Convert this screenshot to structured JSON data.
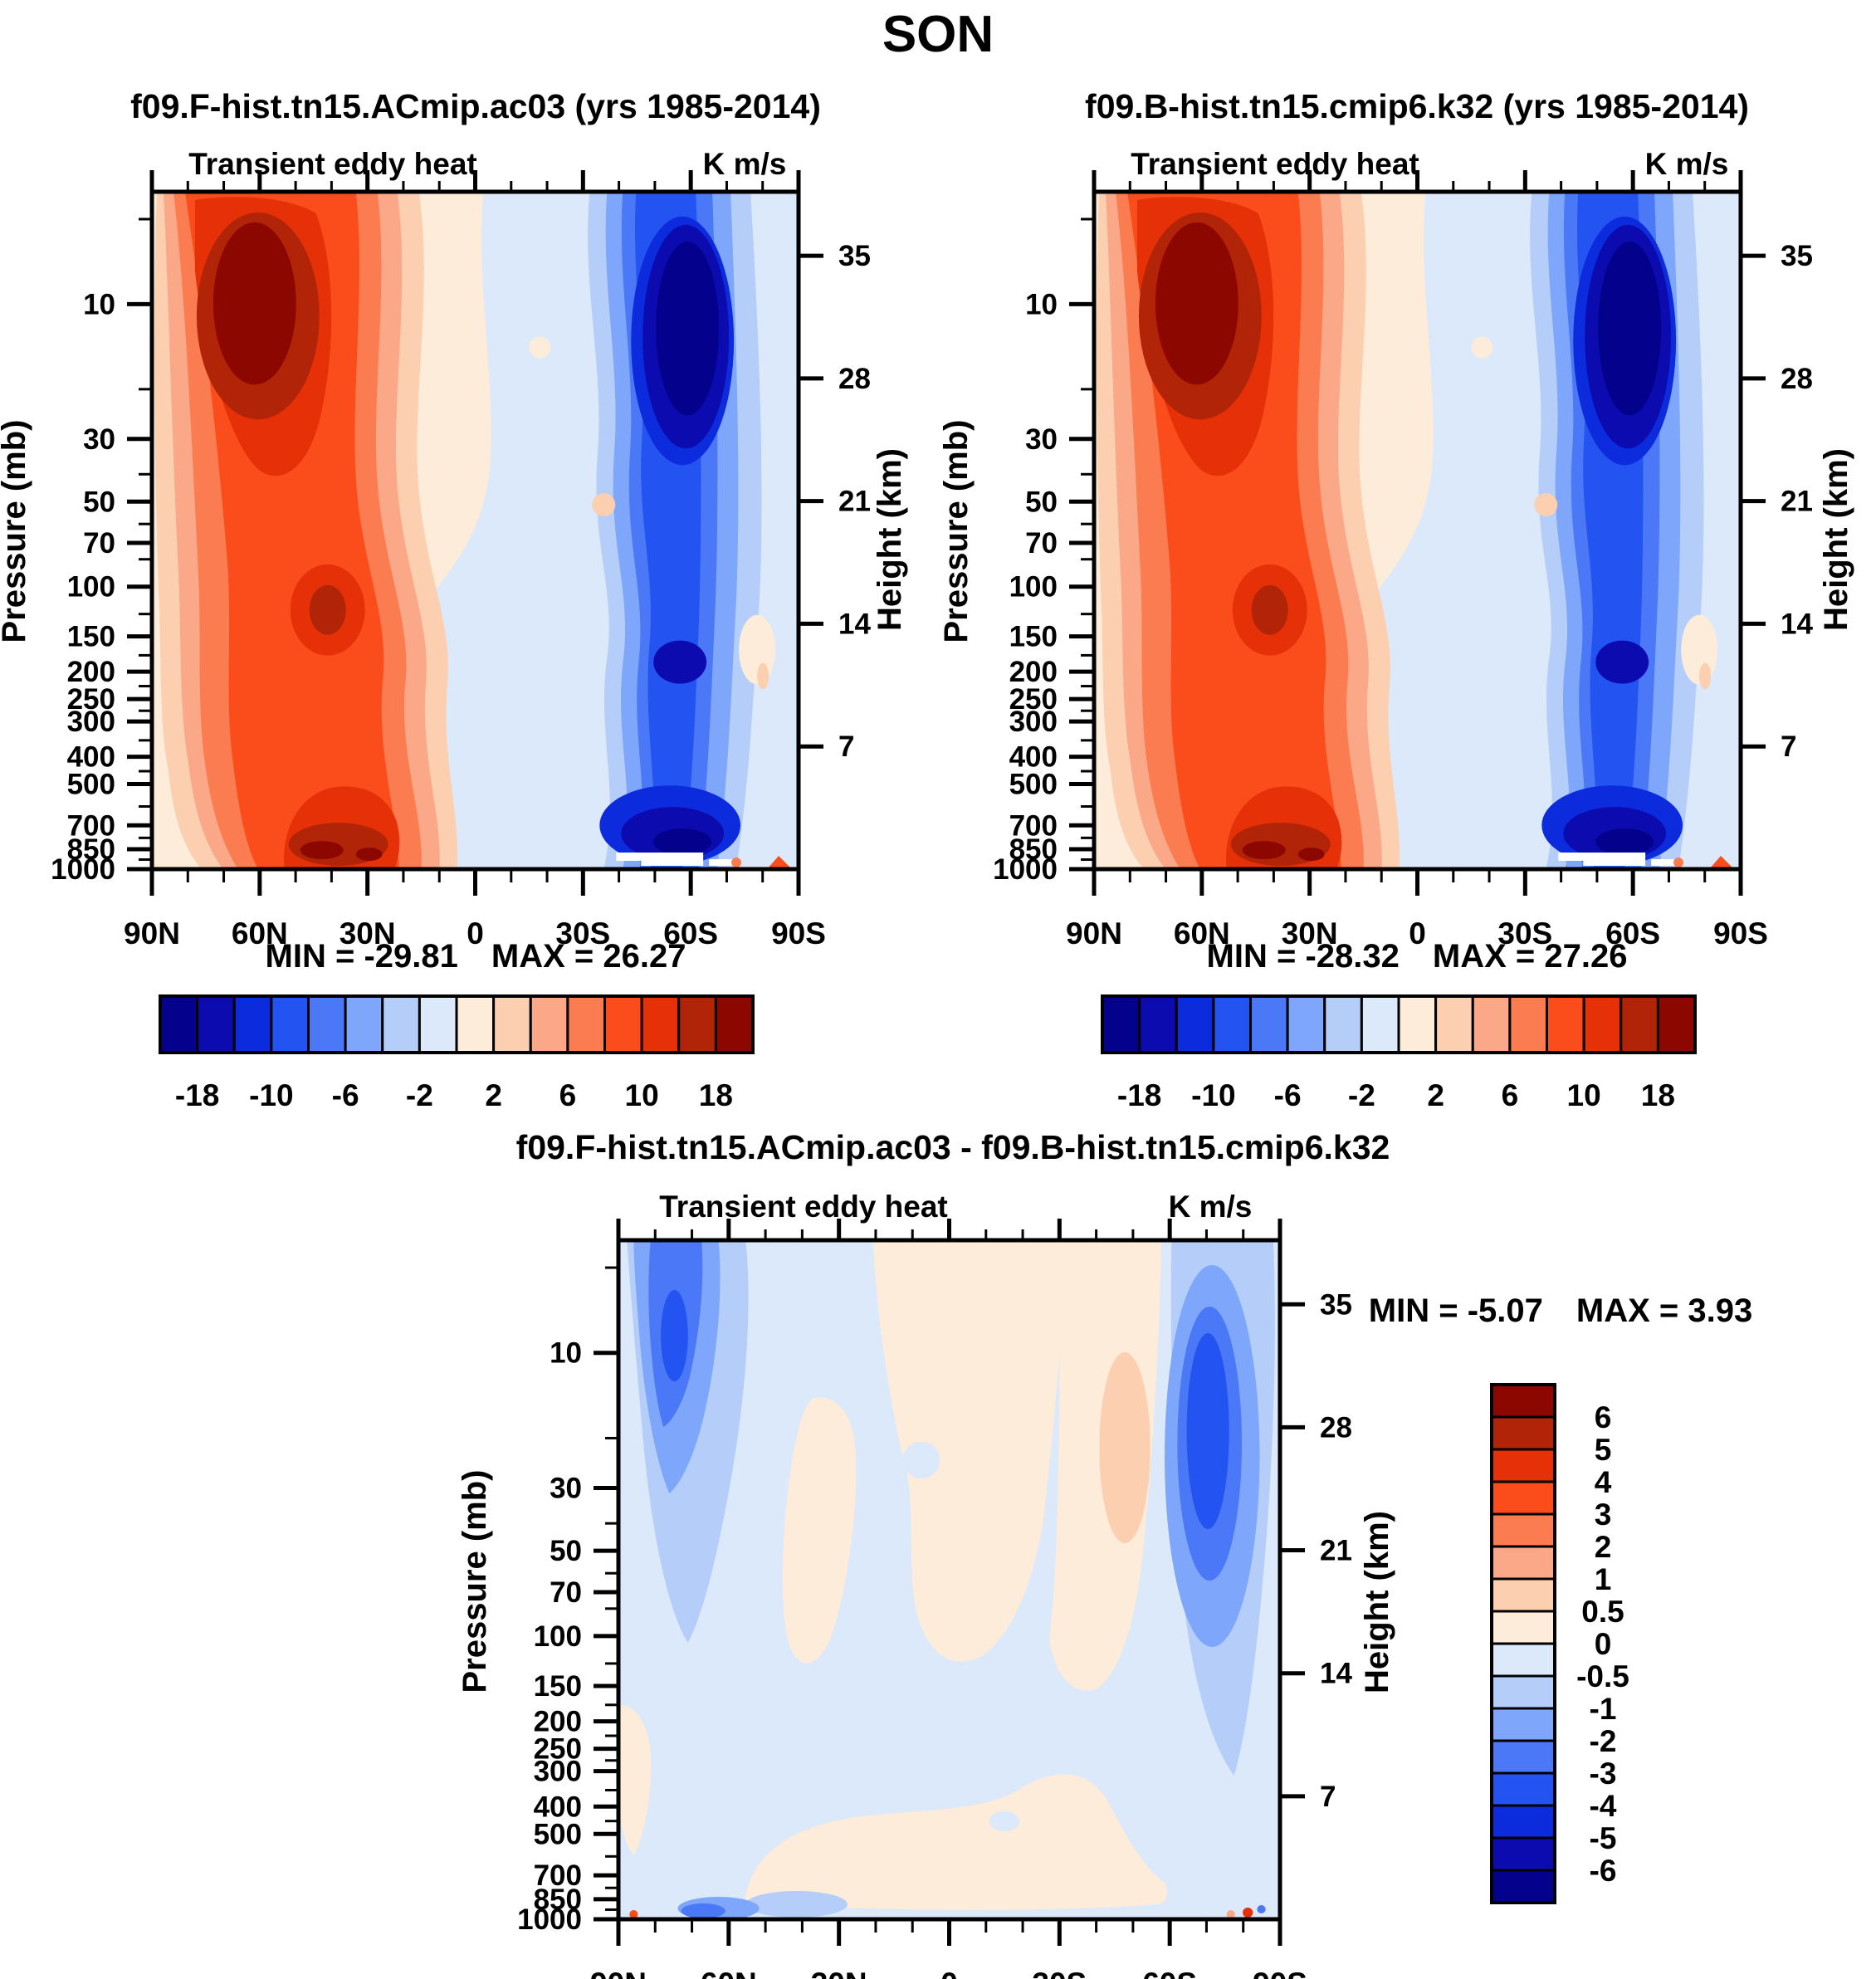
{
  "figure_title": "SON",
  "panels": {
    "top_left": {
      "title": "f09.F-hist.tn15.ACmip.ac03 (yrs 1985-2014)",
      "field_label": "Transient eddy heat",
      "units_label": "K m/s",
      "stats": "MIN = -29.81 MAX =  26.27"
    },
    "top_right": {
      "title": "f09.B-hist.tn15.cmip6.k32 (yrs 1985-2014)",
      "field_label": "Transient eddy heat",
      "units_label": "K m/s",
      "stats": "MIN = -28.32 MAX =  27.26"
    },
    "diff": {
      "title": "f09.F-hist.tn15.ACmip.ac03 - f09.B-hist.tn15.cmip6.k32",
      "field_label": "Transient eddy heat",
      "units_label": "K m/s",
      "stats": "MIN =  -5.07 MAX =   3.93"
    }
  },
  "axes": {
    "latitude": {
      "tick_labels": [
        "90N",
        "60N",
        "30N",
        "0",
        "30S",
        "60S",
        "90S"
      ]
    },
    "pressure": {
      "label": "Pressure (mb)",
      "tick_labels": [
        10,
        30,
        50,
        70,
        100,
        150,
        200,
        250,
        300,
        400,
        500,
        700,
        850,
        1000
      ],
      "minor_ticks": [
        5,
        20,
        40,
        60,
        80,
        125,
        175,
        225,
        275,
        350,
        450,
        600,
        775,
        925
      ],
      "top_pressure_mb": 4
    },
    "height": {
      "label": "Height (km)",
      "tick_labels": [
        35,
        28,
        21,
        14,
        7
      ]
    }
  },
  "palette": {
    "colors": [
      "#04028C",
      "#0B0BAF",
      "#0C2BDD",
      "#2353F0",
      "#4A78F7",
      "#7EA6FB",
      "#B5CEF9",
      "#DBE9FA",
      "#FCECD9",
      "#FCCFB0",
      "#FBA888",
      "#FA7C50",
      "#FB4C1C",
      "#E63008",
      "#B22407",
      "#8C0700"
    ]
  },
  "colorbar_top": {
    "labels": [
      "-18",
      "-10",
      "-6",
      "-2",
      "2",
      "6",
      "10",
      "18"
    ],
    "label_boundary_index": [
      1,
      3,
      5,
      7,
      9,
      11,
      13,
      15
    ]
  },
  "colorbar_diff": {
    "labels": [
      "6",
      "5",
      "4",
      "3",
      "2",
      "1",
      "0.5",
      "0",
      "-0.5",
      "-1",
      "-2",
      "-3",
      "-4",
      "-5",
      "-6"
    ]
  },
  "chart_data": [
    {
      "type": "filled_contour",
      "panel": "top_left",
      "title": "f09.F-hist.tn15.ACmip.ac03 (yrs 1985-2014)",
      "variable": "Transient eddy heat",
      "units": "K m/s",
      "x_axis": {
        "label": "latitude",
        "range": [
          "90N",
          "90S"
        ],
        "ticks": [
          "90N",
          "60N",
          "30N",
          "0",
          "30S",
          "60S",
          "90S"
        ]
      },
      "y_axis": {
        "label": "Pressure (mb)",
        "scale": "log",
        "range_mb": [
          1000,
          4
        ],
        "ticks": [
          10,
          30,
          50,
          70,
          100,
          150,
          200,
          250,
          300,
          400,
          500,
          700,
          850,
          1000
        ]
      },
      "y2_axis": {
        "label": "Height (km)",
        "ticks": [
          35,
          28,
          21,
          14,
          7
        ]
      },
      "contour_levels": [
        -18,
        -14,
        -10,
        -8,
        -6,
        -4,
        -2,
        0,
        2,
        4,
        6,
        8,
        10,
        14,
        18
      ],
      "min": -29.81,
      "max": 26.27,
      "features": [
        {
          "desc": "strong positive (red) cell >18 centered near 60N at ~10 mb"
        },
        {
          "desc": "secondary positive maxima near 55N at 150-200 mb and near-surface 50-60N (700-1000 mb)"
        },
        {
          "desc": "strong negative (blue) cell <-18 centered near 55-60S at 10-30 mb"
        },
        {
          "desc": "secondary negative minimum near 60S at 700-1000 mb (absolute min -29.81)"
        },
        {
          "desc": "near-zero values in tropics and at both poles"
        }
      ]
    },
    {
      "type": "filled_contour",
      "panel": "top_right",
      "title": "f09.B-hist.tn15.cmip6.k32 (yrs 1985-2014)",
      "variable": "Transient eddy heat",
      "units": "K m/s",
      "x_axis": {
        "label": "latitude",
        "range": [
          "90N",
          "90S"
        ],
        "ticks": [
          "90N",
          "60N",
          "30N",
          "0",
          "30S",
          "60S",
          "90S"
        ]
      },
      "y_axis": {
        "label": "Pressure (mb)",
        "scale": "log",
        "range_mb": [
          1000,
          4
        ],
        "ticks": [
          10,
          30,
          50,
          70,
          100,
          150,
          200,
          250,
          300,
          400,
          500,
          700,
          850,
          1000
        ]
      },
      "y2_axis": {
        "label": "Height (km)",
        "ticks": [
          35,
          28,
          21,
          14,
          7
        ]
      },
      "contour_levels": [
        -18,
        -14,
        -10,
        -8,
        -6,
        -4,
        -2,
        0,
        2,
        4,
        6,
        8,
        10,
        14,
        18
      ],
      "min": -28.32,
      "max": 27.26,
      "features": [
        {
          "desc": "pattern nearly identical to top_left: positive cell near 60N upper stratosphere, negative cell near 60S"
        },
        {
          "desc": "positive near-surface band 40-65N, negative near-surface band 45-70S"
        }
      ]
    },
    {
      "type": "filled_contour",
      "panel": "diff",
      "title": "f09.F-hist.tn15.ACmip.ac03 - f09.B-hist.tn15.cmip6.k32",
      "variable": "Transient eddy heat difference",
      "units": "K m/s",
      "x_axis": {
        "label": "latitude",
        "range": [
          "90N",
          "90S"
        ],
        "ticks": [
          "90N",
          "60N",
          "30N",
          "0",
          "30S",
          "60S",
          "90S"
        ]
      },
      "y_axis": {
        "label": "Pressure (mb)",
        "scale": "log",
        "range_mb": [
          1000,
          4
        ],
        "ticks": [
          10,
          30,
          50,
          70,
          100,
          150,
          200,
          250,
          300,
          400,
          500,
          700,
          850,
          1000
        ]
      },
      "y2_axis": {
        "label": "Height (km)",
        "ticks": [
          35,
          28,
          21,
          14,
          7
        ]
      },
      "contour_levels": [
        -6,
        -5,
        -4,
        -3,
        -2,
        -1,
        -0.5,
        0,
        0.5,
        1,
        2,
        3,
        4,
        5,
        6
      ],
      "min": -5.07,
      "max": 3.93,
      "features": [
        {
          "desc": "negative (blue) column near 75-85N from top of plot down to ~100 mb, core ~-3 to -4"
        },
        {
          "desc": "strong negative (blue) teardrop near 55-65S from ~5 mb to ~150 mb, core ~-4 to -5"
        },
        {
          "desc": "weak positive (0 to +1) areas through tropics/subtropics and lower levels"
        },
        {
          "desc": "small negative patches at surface near 60-70N; mostly weak (-0.5 to 0) elsewhere"
        }
      ]
    }
  ]
}
